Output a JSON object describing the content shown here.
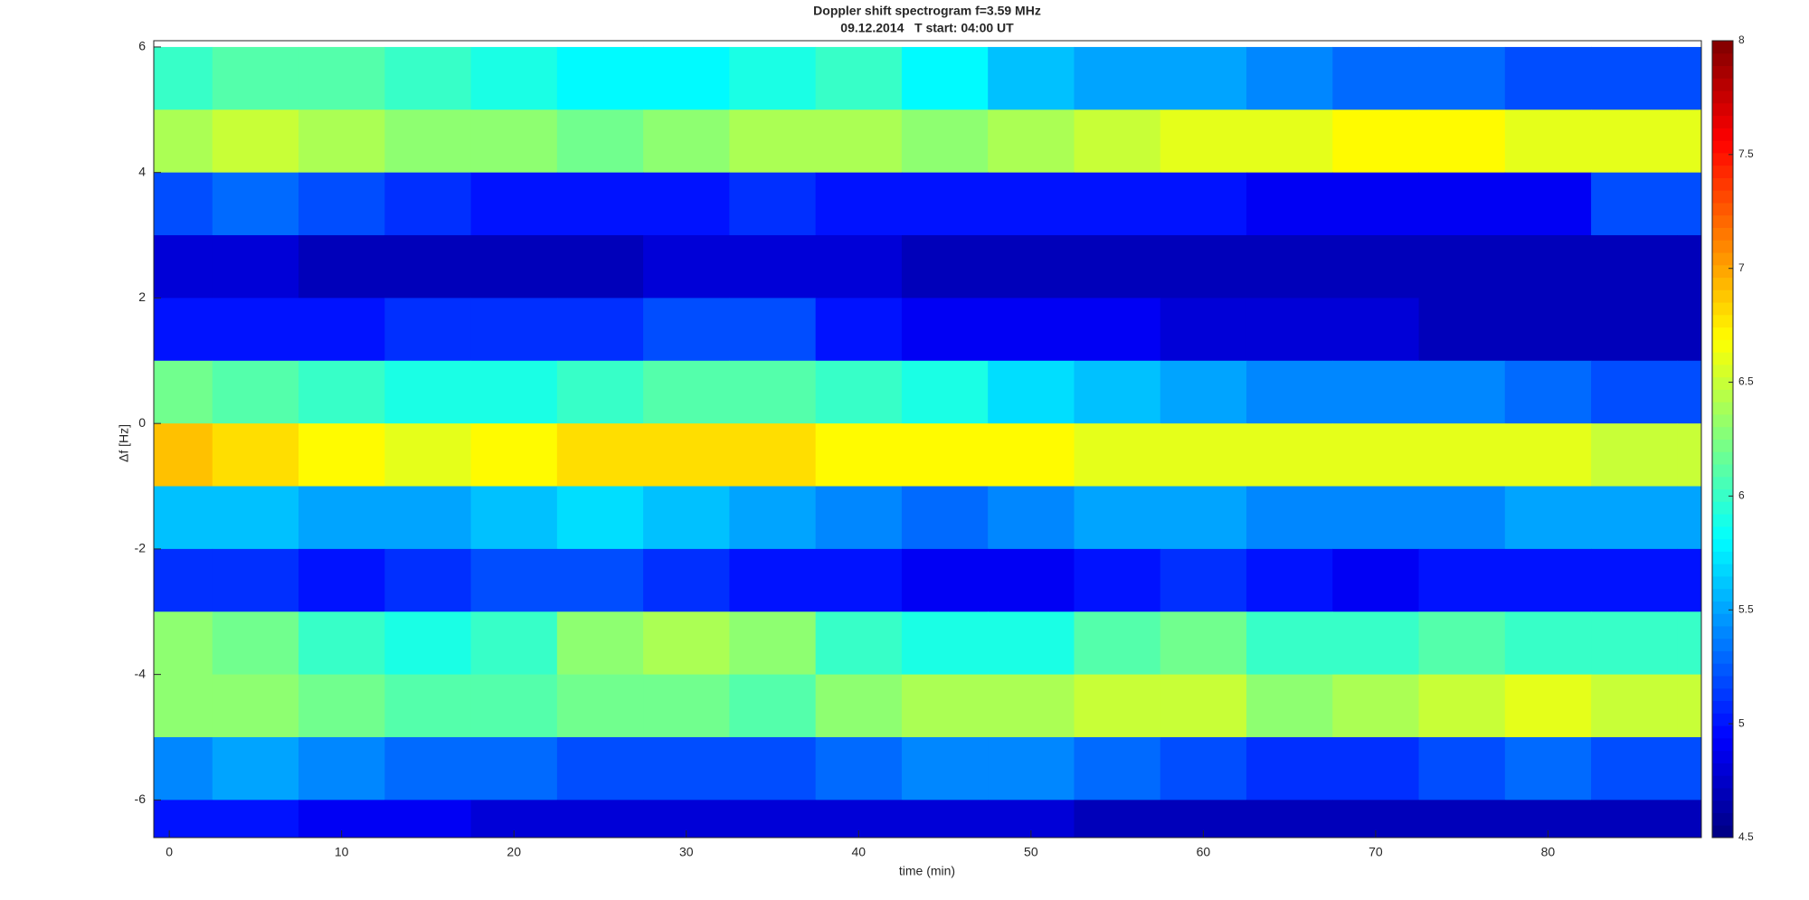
{
  "chart_data": {
    "type": "heatmap",
    "title": "Doppler shift spectrogram f=3.59 MHz",
    "subtitle": "09.12.2014   T start: 04:00 UT",
    "xlabel": "time (min)",
    "ylabel": "Δf [Hz]",
    "xlim": [
      -0.9,
      88.9
    ],
    "xticks": [
      0,
      10,
      20,
      30,
      40,
      50,
      60,
      70,
      80
    ],
    "ylim": [
      -6.6,
      6.1
    ],
    "yticks": [
      -6,
      -4,
      -2,
      0,
      2,
      4,
      6
    ],
    "colormap": "jet",
    "clim": [
      4.5,
      8
    ],
    "cticks": [
      4.5,
      5,
      5.5,
      6,
      6.5,
      7,
      7.5,
      8
    ],
    "x": [
      0,
      5,
      10,
      15,
      20,
      25,
      30,
      35,
      40,
      45,
      50,
      55,
      60,
      65,
      70,
      75,
      80,
      85,
      90
    ],
    "y": [
      5.5,
      4.5,
      3.5,
      2.5,
      1.5,
      0.5,
      -0.5,
      -1.5,
      -2.5,
      -3.5,
      -4.5,
      -5.5,
      -6.5
    ],
    "z": [
      [
        6.0,
        6.1,
        6.1,
        6.0,
        5.9,
        5.8,
        5.8,
        5.9,
        6.0,
        5.8,
        5.6,
        5.5,
        5.5,
        5.4,
        5.3,
        5.3,
        5.2,
        5.2,
        5.2
      ],
      [
        6.4,
        6.5,
        6.4,
        6.3,
        6.3,
        6.2,
        6.3,
        6.4,
        6.4,
        6.3,
        6.4,
        6.5,
        6.6,
        6.6,
        6.7,
        6.7,
        6.6,
        6.6,
        6.6
      ],
      [
        5.2,
        5.3,
        5.2,
        5.1,
        5.0,
        5.0,
        5.0,
        5.1,
        5.0,
        5.0,
        5.0,
        5.0,
        5.0,
        4.9,
        4.9,
        4.9,
        4.9,
        5.2,
        5.2
      ],
      [
        4.8,
        4.8,
        4.7,
        4.7,
        4.7,
        4.7,
        4.8,
        4.8,
        4.8,
        4.7,
        4.7,
        4.7,
        4.7,
        4.7,
        4.7,
        4.7,
        4.7,
        4.7,
        4.7
      ],
      [
        5.0,
        5.0,
        5.0,
        5.1,
        5.1,
        5.1,
        5.2,
        5.2,
        5.0,
        4.9,
        4.9,
        4.9,
        4.8,
        4.8,
        4.8,
        4.7,
        4.7,
        4.7,
        4.7
      ],
      [
        6.2,
        6.1,
        6.0,
        5.9,
        5.9,
        6.0,
        6.1,
        6.1,
        6.0,
        5.9,
        5.7,
        5.6,
        5.5,
        5.4,
        5.4,
        5.4,
        5.3,
        5.2,
        5.2
      ],
      [
        6.9,
        6.8,
        6.7,
        6.6,
        6.7,
        6.8,
        6.8,
        6.8,
        6.7,
        6.7,
        6.7,
        6.6,
        6.6,
        6.6,
        6.6,
        6.6,
        6.6,
        6.5,
        6.5
      ],
      [
        5.6,
        5.6,
        5.5,
        5.5,
        5.6,
        5.7,
        5.6,
        5.5,
        5.4,
        5.3,
        5.4,
        5.5,
        5.5,
        5.4,
        5.4,
        5.4,
        5.5,
        5.5,
        5.5
      ],
      [
        5.1,
        5.1,
        5.0,
        5.1,
        5.2,
        5.2,
        5.1,
        5.0,
        5.0,
        4.9,
        4.9,
        5.0,
        5.1,
        5.0,
        4.9,
        5.0,
        5.0,
        5.0,
        5.0
      ],
      [
        6.3,
        6.2,
        6.0,
        5.9,
        6.0,
        6.3,
        6.4,
        6.3,
        6.0,
        5.9,
        5.9,
        6.1,
        6.2,
        6.0,
        6.0,
        6.1,
        6.0,
        6.0,
        6.0
      ],
      [
        6.3,
        6.3,
        6.2,
        6.1,
        6.1,
        6.2,
        6.2,
        6.1,
        6.3,
        6.4,
        6.4,
        6.5,
        6.5,
        6.3,
        6.4,
        6.5,
        6.6,
        6.5,
        6.5
      ],
      [
        5.4,
        5.5,
        5.4,
        5.3,
        5.3,
        5.2,
        5.2,
        5.2,
        5.3,
        5.4,
        5.4,
        5.3,
        5.2,
        5.1,
        5.1,
        5.2,
        5.3,
        5.2,
        5.2
      ],
      [
        5.0,
        5.0,
        4.9,
        4.9,
        4.8,
        4.8,
        4.8,
        4.8,
        4.8,
        4.8,
        4.8,
        4.7,
        4.7,
        4.7,
        4.7,
        4.7,
        4.7,
        4.7,
        4.7
      ]
    ]
  }
}
